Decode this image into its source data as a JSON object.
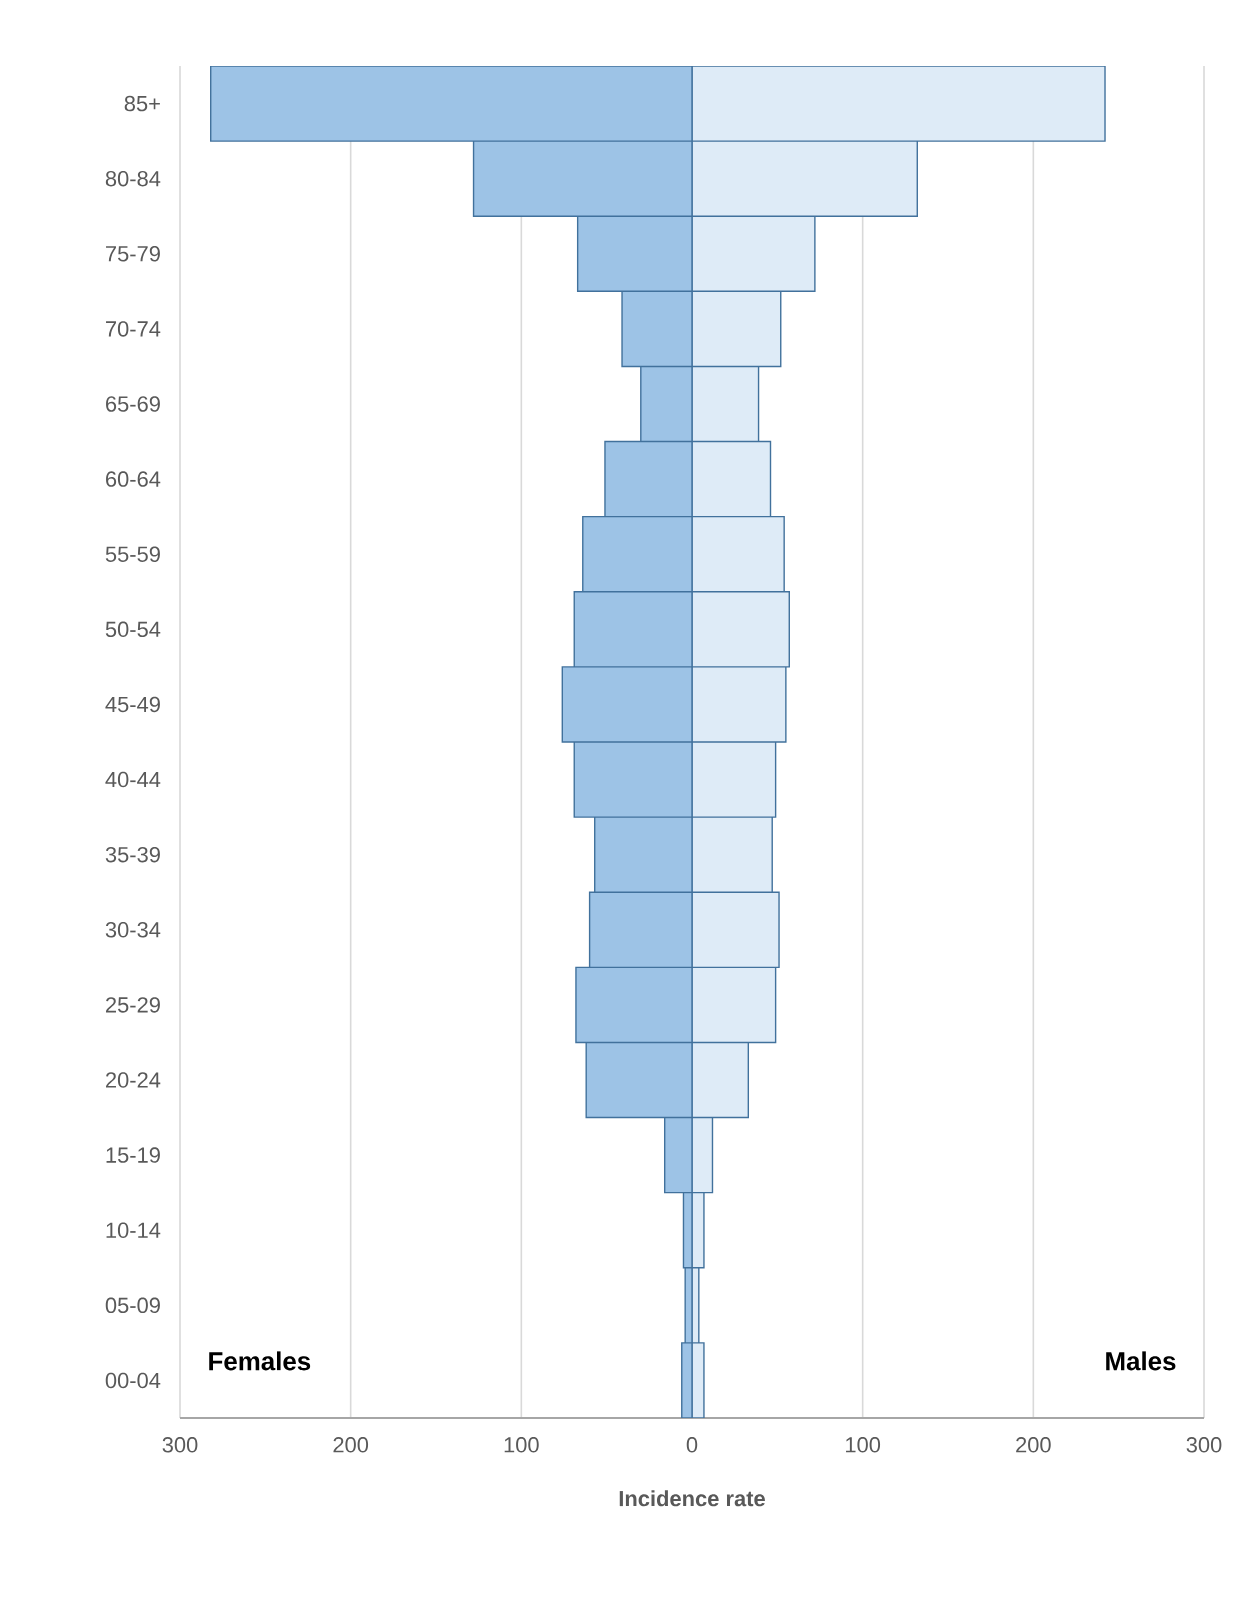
{
  "chart_data": {
    "type": "bar",
    "orientation": "horizontal",
    "xlabel": "Incidence rate",
    "categories": [
      "85+",
      "80-84",
      "75-79",
      "70-74",
      "65-69",
      "60-64",
      "55-59",
      "50-54",
      "45-49",
      "40-44",
      "35-39",
      "30-34",
      "25-29",
      "20-24",
      "15-19",
      "10-14",
      "05-09",
      "00-04"
    ],
    "annotations": [
      "Females",
      "Males"
    ],
    "series": [
      {
        "color": "#9dc3e6",
        "values": [
          -282,
          -128,
          -67,
          -41,
          -30,
          -51,
          -64,
          -69,
          -76,
          -69,
          -57,
          -60,
          -68,
          -62,
          -16,
          -5,
          -4,
          -6
        ]
      },
      {
        "color": "#deebf7",
        "values": [
          242,
          132,
          72,
          52,
          39,
          46,
          54,
          57,
          55,
          49,
          47,
          51,
          49,
          33,
          12,
          7,
          4,
          7
        ]
      }
    ],
    "xlim": [
      -300,
      300
    ],
    "xticks": [
      {
        "value": -300,
        "label": "300"
      },
      {
        "value": -200,
        "label": "200"
      },
      {
        "value": -100,
        "label": "100"
      },
      0,
      100,
      200,
      300
    ],
    "grid": "x",
    "legend": false,
    "stacked": true
  }
}
